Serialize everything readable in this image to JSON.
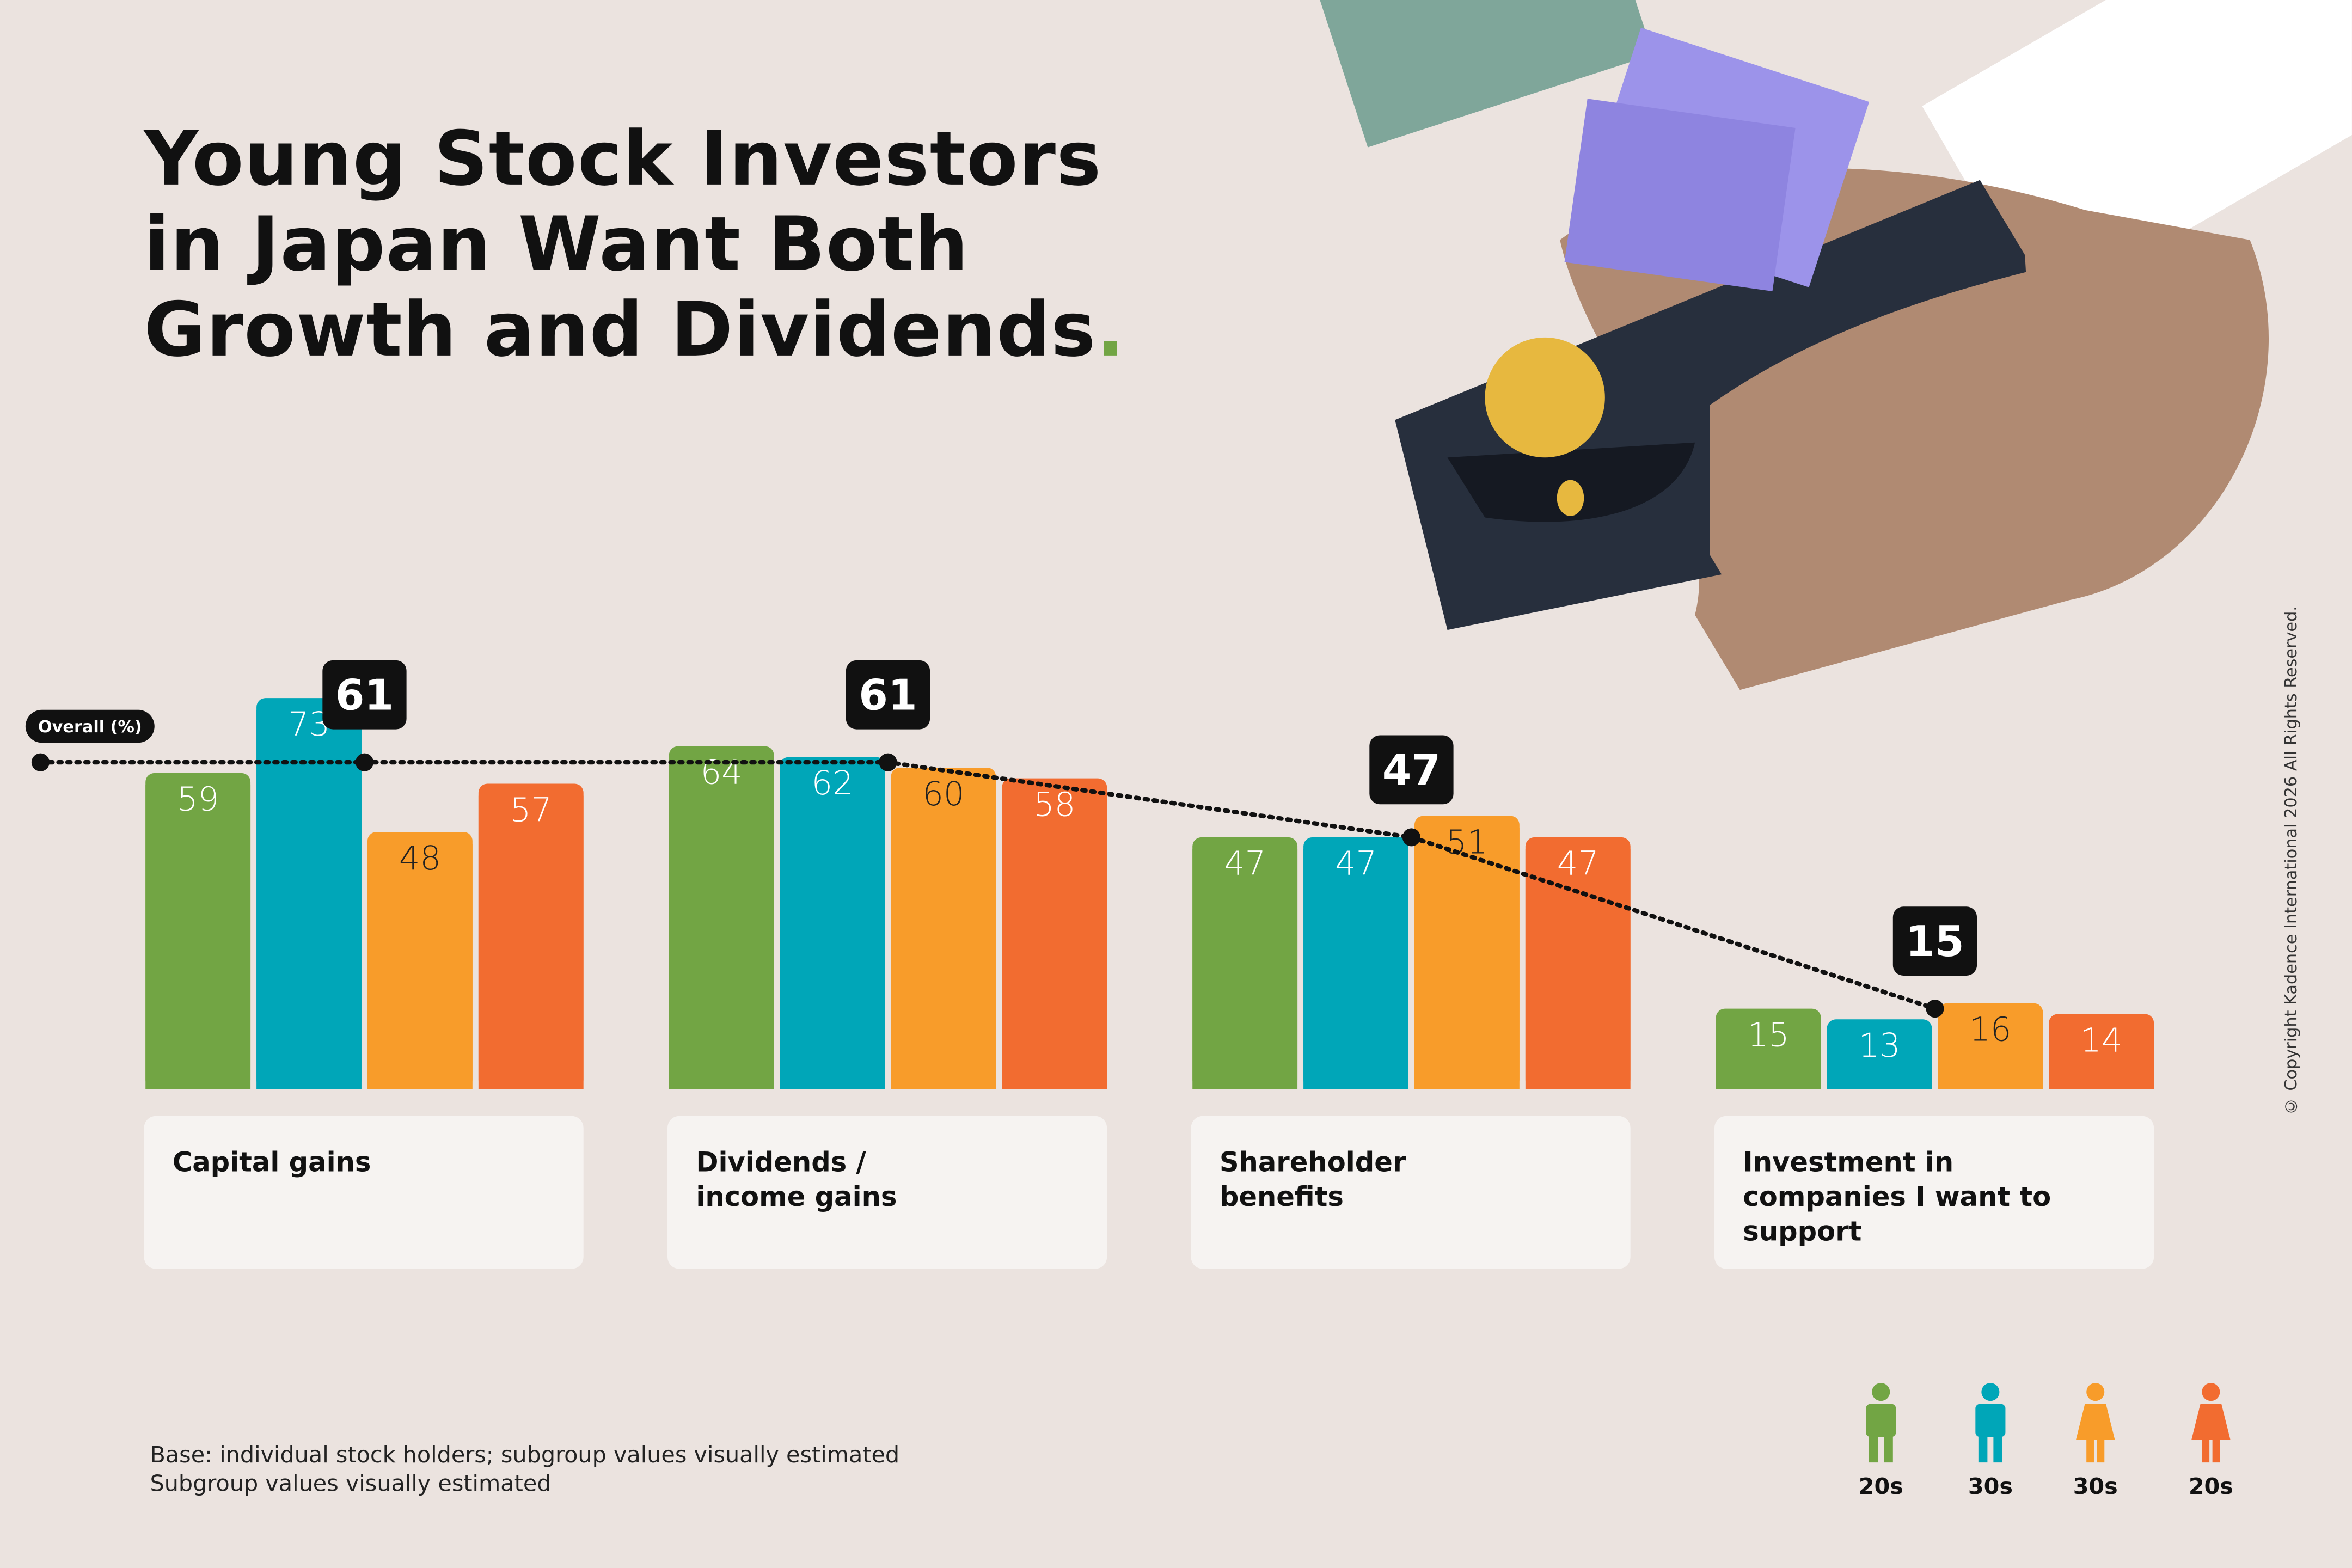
{
  "chart_data": {
    "type": "bar",
    "title": "Young Stock Investors\nin Japan Want Both\nGrowth and Dividends",
    "title_dot": ".",
    "categories": [
      "Capital gains",
      "Dividends /\nincome gains",
      "Shareholder\nbenefits",
      "Investment in\ncompanies I want to\nsupport"
    ],
    "series": [
      {
        "name": "20s",
        "icon": "male",
        "color": "#72a544",
        "label_color": "#ffffff",
        "values": [
          59,
          64,
          47,
          15
        ]
      },
      {
        "name": "30s",
        "icon": "male",
        "color": "#00a6b8",
        "label_color": "#ffffff",
        "values": [
          73,
          62,
          47,
          13
        ]
      },
      {
        "name": "30s",
        "icon": "female",
        "color": "#f89c2a",
        "label_color": "#222222",
        "values": [
          48,
          60,
          51,
          16
        ]
      },
      {
        "name": "20s",
        "icon": "female",
        "color": "#f26c30",
        "label_color": "#ffffff",
        "values": [
          57,
          58,
          47,
          14
        ]
      }
    ],
    "overall": {
      "name": "Overall (%)",
      "values": [
        61,
        61,
        47,
        15
      ]
    },
    "ylim": [
      0,
      100
    ],
    "notes": [
      "Base: individual stock holders; subgroup values visually estimated",
      "Subgroup values visually estimated"
    ],
    "copyright": "© Copyright Kadence International 2026 All Rights Reserved."
  }
}
